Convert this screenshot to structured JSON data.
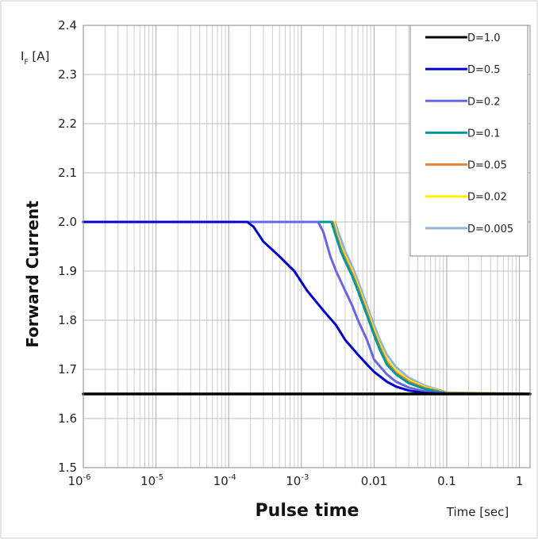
{
  "chart_data": {
    "type": "line",
    "xscale": "log",
    "xlim": [
      1e-06,
      1.4
    ],
    "ylim": [
      1.5,
      2.4
    ],
    "grid": true,
    "legend_position": "top-right",
    "x_ticks": [
      {
        "value": 1e-06,
        "base": "10",
        "exp": "-6"
      },
      {
        "value": 1e-05,
        "base": "10",
        "exp": "-5"
      },
      {
        "value": 0.0001,
        "base": "10",
        "exp": "-4"
      },
      {
        "value": 0.001,
        "base": "10",
        "exp": "-3"
      },
      {
        "value": 0.01,
        "base": "0.01",
        "exp": ""
      },
      {
        "value": 0.1,
        "base": "0.1",
        "exp": ""
      },
      {
        "value": 1,
        "base": "1",
        "exp": ""
      }
    ],
    "y_ticks": [
      "1.5",
      "1.6",
      "1.7",
      "1.8",
      "1.9",
      "2.0",
      "2.1",
      "2.2",
      "2.3",
      "2.4"
    ],
    "ylabel": "Forward Current",
    "xlabel": "Pulse time",
    "y_unit": {
      "main": "I",
      "sub": "F",
      "rest": " [A]"
    },
    "x_unit": "Time [sec]",
    "series": [
      {
        "name": "D=1.0",
        "color": "#000000",
        "x": [
          1e-06,
          1.4
        ],
        "y": [
          1.65,
          1.65
        ]
      },
      {
        "name": "D=0.5",
        "color": "#0000cc",
        "x": [
          1e-06,
          0.00018,
          0.00022,
          0.0003,
          0.0005,
          0.0008,
          0.0012,
          0.002,
          0.003,
          0.004,
          0.006,
          0.008,
          0.01,
          0.015,
          0.02,
          0.03,
          0.05,
          0.1,
          1.4
        ],
        "y": [
          2.0,
          2.0,
          1.99,
          1.96,
          1.93,
          1.9,
          1.86,
          1.82,
          1.79,
          1.76,
          1.73,
          1.71,
          1.695,
          1.675,
          1.665,
          1.657,
          1.652,
          1.65,
          1.65
        ]
      },
      {
        "name": "D=0.2",
        "color": "#6666e6",
        "x": [
          1e-06,
          0.0017,
          0.002,
          0.0025,
          0.003,
          0.004,
          0.005,
          0.006,
          0.008,
          0.01,
          0.015,
          0.02,
          0.03,
          0.05,
          0.1,
          1.4
        ],
        "y": [
          2.0,
          2.0,
          1.98,
          1.93,
          1.9,
          1.86,
          1.83,
          1.8,
          1.76,
          1.72,
          1.69,
          1.675,
          1.663,
          1.655,
          1.65,
          1.65
        ]
      },
      {
        "name": "D=0.1",
        "color": "#009999",
        "x": [
          1e-06,
          0.0026,
          0.003,
          0.0035,
          0.004,
          0.005,
          0.006,
          0.008,
          0.01,
          0.012,
          0.015,
          0.02,
          0.03,
          0.05,
          0.1,
          1.4
        ],
        "y": [
          2.0,
          2.0,
          1.97,
          1.94,
          1.92,
          1.89,
          1.86,
          1.81,
          1.77,
          1.74,
          1.71,
          1.69,
          1.672,
          1.66,
          1.651,
          1.65
        ]
      },
      {
        "name": "D=0.05",
        "color": "#e8803a",
        "x": [
          1e-06,
          0.0027,
          0.003,
          0.0035,
          0.004,
          0.005,
          0.006,
          0.008,
          0.01,
          0.012,
          0.015,
          0.02,
          0.03,
          0.05,
          0.1,
          1.4
        ],
        "y": [
          2.0,
          2.0,
          1.975,
          1.945,
          1.925,
          1.895,
          1.865,
          1.815,
          1.775,
          1.745,
          1.715,
          1.693,
          1.675,
          1.662,
          1.652,
          1.65
        ]
      },
      {
        "name": "D=0.02",
        "color": "#ffee00",
        "x": [
          1e-06,
          0.0028,
          0.003,
          0.0035,
          0.004,
          0.005,
          0.006,
          0.008,
          0.01,
          0.012,
          0.015,
          0.02,
          0.03,
          0.05,
          0.1,
          1.4
        ],
        "y": [
          2.0,
          2.0,
          1.98,
          1.95,
          1.93,
          1.9,
          1.87,
          1.82,
          1.78,
          1.75,
          1.72,
          1.697,
          1.678,
          1.664,
          1.652,
          1.65
        ]
      },
      {
        "name": "D=0.005",
        "color": "#92b4dc",
        "x": [
          1e-06,
          0.0029,
          0.0032,
          0.0036,
          0.004,
          0.005,
          0.006,
          0.008,
          0.01,
          0.012,
          0.015,
          0.02,
          0.03,
          0.05,
          0.1,
          1.4
        ],
        "y": [
          2.0,
          2.0,
          1.98,
          1.96,
          1.94,
          1.91,
          1.88,
          1.83,
          1.79,
          1.76,
          1.73,
          1.705,
          1.683,
          1.667,
          1.653,
          1.65
        ]
      }
    ]
  }
}
